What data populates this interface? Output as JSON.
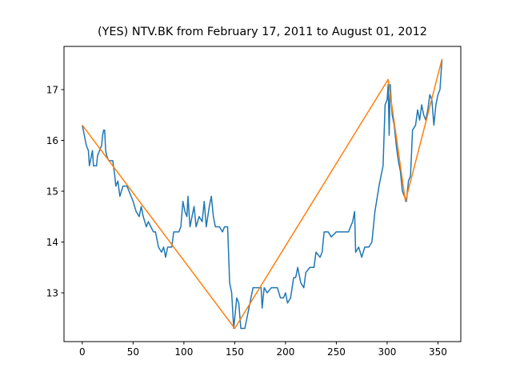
{
  "chart_data": {
    "type": "line",
    "title": "(YES) NTV.BK from February 17, 2011 to August 01, 2012",
    "xlim": [
      -18,
      372.5
    ],
    "ylim": [
      12.04,
      17.85
    ],
    "xticks": [
      0,
      50,
      100,
      150,
      200,
      250,
      300,
      350
    ],
    "yticks": [
      13,
      14,
      15,
      16,
      17
    ],
    "grid": false,
    "series": [
      {
        "color": "#1f77b4",
        "x": [
          0,
          2,
          4,
          6,
          7,
          9,
          10,
          11,
          14,
          15,
          17,
          19,
          20,
          21,
          22,
          23,
          24,
          26,
          30,
          32,
          33,
          35,
          37,
          40,
          44,
          48,
          50,
          53,
          56,
          58,
          60,
          63,
          65,
          70,
          72,
          75,
          78,
          80,
          82,
          84,
          88,
          90,
          95,
          97,
          99,
          101,
          103,
          104,
          106,
          108,
          110,
          112,
          115,
          118,
          120,
          122,
          125,
          127,
          129,
          131,
          135,
          138,
          140,
          143,
          145,
          147,
          149,
          150,
          152,
          154,
          156,
          160,
          162,
          165,
          168,
          172,
          176,
          177,
          179,
          182,
          186,
          192,
          195,
          198,
          200,
          202,
          205,
          208,
          210,
          212,
          215,
          218,
          220,
          224,
          228,
          230,
          234,
          236,
          238,
          242,
          245,
          250,
          258,
          262,
          266,
          268,
          269,
          272,
          275,
          278,
          282,
          285,
          288,
          292,
          296,
          298,
          300,
          301,
          302,
          303,
          305,
          307,
          309,
          311,
          313,
          315,
          317,
          319,
          321,
          323,
          325,
          328,
          330,
          332,
          334,
          336,
          338,
          340,
          342,
          344,
          346,
          348,
          350,
          352,
          354
        ],
        "values": [
          16.3,
          16.1,
          15.9,
          15.8,
          15.5,
          15.7,
          15.8,
          15.5,
          15.5,
          15.7,
          15.8,
          15.9,
          16.1,
          16.2,
          16.2,
          15.8,
          15.7,
          15.6,
          15.6,
          15.3,
          15.1,
          15.2,
          14.9,
          15.1,
          15.1,
          14.9,
          14.8,
          14.6,
          14.5,
          14.7,
          14.5,
          14.3,
          14.4,
          14.2,
          14.2,
          13.9,
          13.8,
          13.9,
          13.7,
          13.9,
          13.9,
          14.2,
          14.2,
          14.3,
          14.8,
          14.6,
          14.5,
          14.9,
          14.3,
          14.5,
          14.7,
          14.3,
          14.5,
          14.4,
          14.8,
          14.3,
          14.7,
          14.9,
          14.5,
          14.3,
          14.3,
          14.2,
          14.3,
          14.3,
          13.2,
          13.0,
          12.3,
          12.5,
          12.9,
          12.8,
          12.3,
          12.3,
          12.5,
          12.8,
          13.1,
          13.1,
          13.1,
          12.7,
          13.1,
          13.0,
          13.1,
          13.1,
          12.9,
          12.9,
          13.0,
          12.8,
          12.9,
          13.3,
          13.3,
          13.5,
          13.2,
          13.1,
          13.4,
          13.5,
          13.5,
          13.8,
          13.7,
          13.8,
          14.2,
          14.2,
          14.1,
          14.2,
          14.2,
          14.2,
          14.4,
          14.6,
          13.8,
          13.9,
          13.7,
          13.9,
          13.9,
          14.0,
          14.6,
          15.1,
          15.5,
          16.7,
          16.8,
          17.1,
          16.1,
          17.1,
          16.5,
          16.3,
          15.9,
          15.6,
          15.4,
          15.0,
          14.9,
          14.8,
          15.2,
          15.3,
          16.2,
          16.3,
          16.6,
          16.4,
          16.7,
          16.5,
          16.4,
          16.6,
          16.9,
          16.8,
          16.3,
          16.7,
          16.9,
          17.0,
          17.6
        ]
      },
      {
        "color": "#ff7f0e",
        "x": [
          0,
          150,
          301,
          318,
          354
        ],
        "values": [
          16.3,
          12.3,
          17.2,
          14.8,
          17.6
        ]
      }
    ]
  }
}
